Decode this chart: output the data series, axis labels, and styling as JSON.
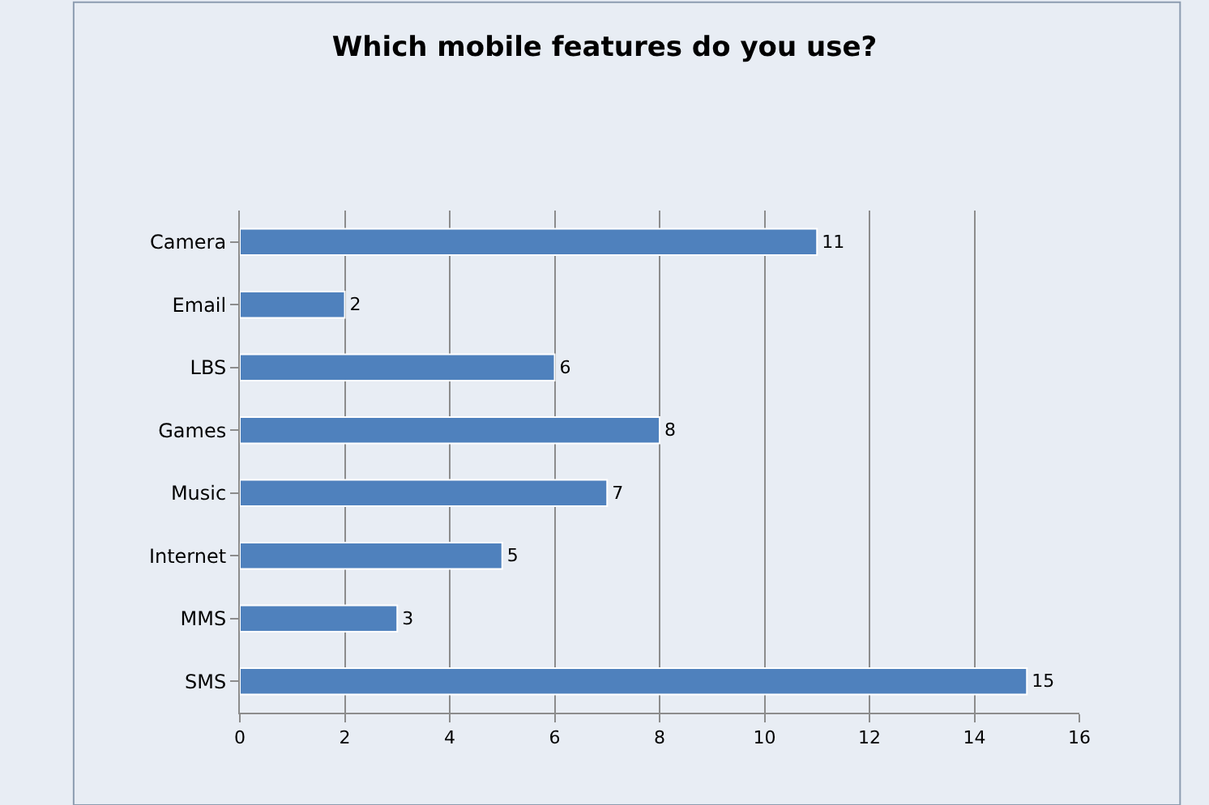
{
  "chart_data": {
    "type": "bar",
    "orientation": "horizontal",
    "title": "Which mobile features do you use?",
    "categories": [
      "Camera",
      "Email",
      "LBS",
      "Games",
      "Music",
      "Internet",
      "MMS",
      "SMS"
    ],
    "values": [
      11,
      2,
      6,
      8,
      7,
      5,
      3,
      15
    ],
    "color": "#4f81bd",
    "xlim": [
      0,
      16
    ],
    "xticks": [
      0,
      2,
      4,
      6,
      8,
      10,
      12,
      14,
      16
    ],
    "grid": "x",
    "data_labels": true,
    "legend": false
  }
}
